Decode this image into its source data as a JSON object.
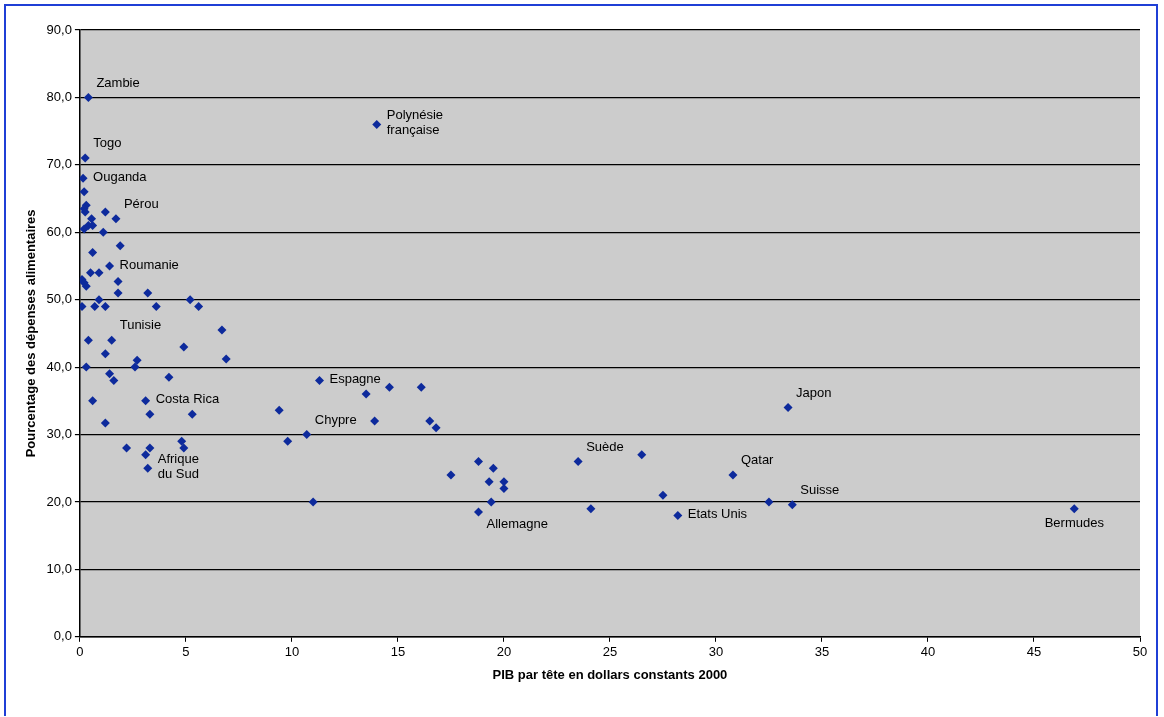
{
  "chart_data": {
    "type": "scatter",
    "xlabel": "PIB par tête en dollars constants 2000",
    "ylabel": "Pourcentage des dépenses alimentaires",
    "series": [
      {
        "color": "#0d2a9c",
        "x": [
          0.4,
          0.25,
          0.15,
          0.2,
          0.3,
          0.2,
          0.25,
          1.2,
          1.7,
          0.55,
          0.4,
          0.6,
          0.2,
          1.1,
          1.9,
          0.6,
          1.4,
          0.5,
          0.9,
          0.1,
          1.8,
          0.2,
          0.3,
          1.8,
          3.2,
          0.9,
          5.2,
          0.1,
          0.7,
          1.2,
          3.6,
          5.6,
          6.7,
          0.4,
          1.5,
          4.9,
          1.2,
          6.9,
          2.7,
          2.6,
          0.3,
          1.4,
          4.2,
          1.6,
          0.6,
          3.1,
          3.3,
          5.3,
          1.2,
          2.2,
          3.3,
          4.8,
          4.9,
          3.1,
          3.2,
          9.4,
          9.8,
          10.7,
          11.3,
          11.0,
          13.5,
          13.9,
          14.6,
          16.1,
          16.5,
          16.8,
          14.0,
          17.5,
          18.8,
          18.8,
          19.3,
          19.5,
          19.4,
          20.0,
          20.0,
          23.5,
          24.1,
          26.5,
          27.5,
          28.2,
          30.8,
          32.5,
          33.4,
          33.6,
          46.9
        ],
        "values": [
          80,
          71,
          68,
          66,
          64,
          63.5,
          63,
          63,
          62,
          62,
          61,
          61,
          60.5,
          60,
          58,
          57,
          55,
          54,
          54,
          53,
          52.7,
          52.5,
          52,
          51,
          51,
          50,
          50,
          49,
          49,
          49,
          49,
          49,
          45.5,
          44,
          44,
          43,
          42,
          41.2,
          41,
          40,
          40,
          39,
          38.5,
          38,
          35,
          35,
          33,
          33,
          31.7,
          28,
          28,
          29,
          28,
          27,
          25,
          33.6,
          29,
          30,
          38,
          20,
          36,
          32,
          37,
          37,
          32,
          31,
          76,
          24,
          26,
          18.5,
          23,
          25,
          20,
          23,
          22,
          26,
          19,
          27,
          21,
          18,
          24,
          20,
          34,
          19.6,
          19
        ]
      }
    ],
    "xlim": [
      0,
      50
    ],
    "xticks": [
      0,
      5,
      10,
      15,
      20,
      25,
      30,
      35,
      40,
      45,
      50
    ],
    "ylim": [
      0,
      90
    ],
    "yticks": [
      {
        "value": 0,
        "label": "0,0"
      },
      {
        "value": 10,
        "label": "10,0"
      },
      {
        "value": 20,
        "label": "20,0"
      },
      {
        "value": 30,
        "label": "30,0"
      },
      {
        "value": 40,
        "label": "40,0"
      },
      {
        "value": 50,
        "label": "50,0"
      },
      {
        "value": 60,
        "label": "60,0"
      },
      {
        "value": 70,
        "label": "70,0"
      },
      {
        "value": 80,
        "label": "80,0"
      },
      {
        "value": 90,
        "label": "90,0"
      }
    ],
    "grid": "y",
    "marker": "diamond",
    "legend": false,
    "annotations": [
      {
        "text": "Zambie",
        "x": 0.4,
        "y": 80
      },
      {
        "text": "Togo",
        "x": 0.25,
        "y": 71
      },
      {
        "text": "Ouganda",
        "x": 0.15,
        "y": 68
      },
      {
        "text": "Pérou",
        "x": 1.7,
        "y": 62
      },
      {
        "text": "Roumanie",
        "x": 1.4,
        "y": 55
      },
      {
        "text": "Tunisie",
        "x": 1.5,
        "y": 44
      },
      {
        "text": "Costa Rica",
        "x": 3.1,
        "y": 35
      },
      {
        "text": "Afrique\ndu Sud",
        "x": 3.2,
        "y": 25
      },
      {
        "text": "Polynésie\nfrançaise",
        "x": 14.0,
        "y": 76
      },
      {
        "text": "Espagne",
        "x": 11.3,
        "y": 38
      },
      {
        "text": "Chypre",
        "x": 10.7,
        "y": 30
      },
      {
        "text": "Allemagne",
        "x": 18.8,
        "y": 18.5
      },
      {
        "text": "Suède",
        "x": 23.5,
        "y": 26
      },
      {
        "text": "Etats Unis",
        "x": 28.2,
        "y": 18
      },
      {
        "text": "Qatar",
        "x": 30.8,
        "y": 24
      },
      {
        "text": "Japon",
        "x": 33.4,
        "y": 34
      },
      {
        "text": "Suisse",
        "x": 33.6,
        "y": 19.6
      },
      {
        "text": "Bermudes",
        "x": 46.9,
        "y": 19
      }
    ]
  }
}
